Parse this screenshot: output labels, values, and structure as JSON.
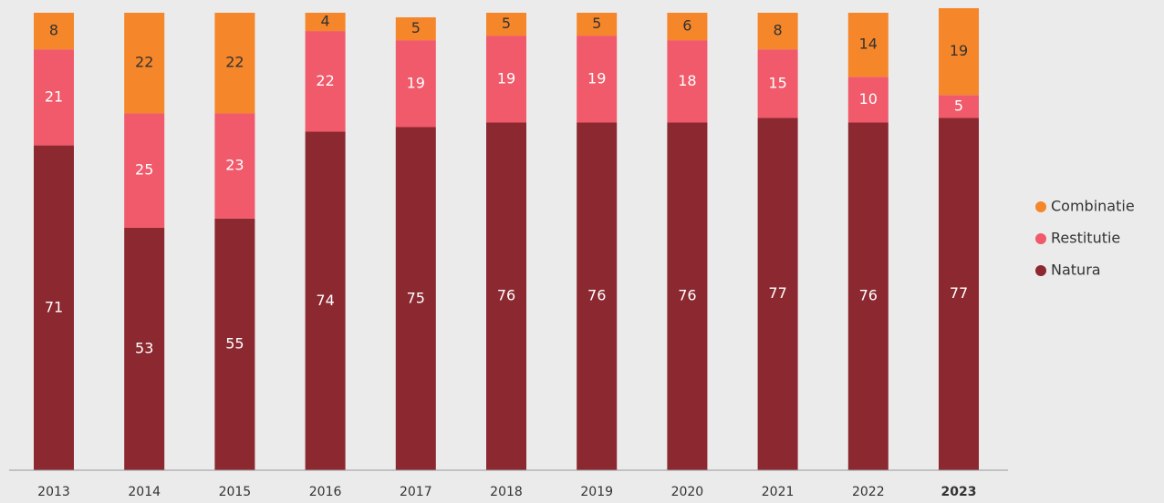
{
  "chart_data": {
    "type": "stacked_bar",
    "categories": [
      "2013",
      "2014",
      "2015",
      "2016",
      "2017",
      "2018",
      "2019",
      "2020",
      "2021",
      "2022",
      "2023"
    ],
    "series": [
      {
        "name": "Natura",
        "color": "#8b2830",
        "label_color": "#ffffff",
        "values": [
          71,
          53,
          55,
          74,
          75,
          76,
          76,
          76,
          77,
          76,
          77
        ]
      },
      {
        "name": "Restitutie",
        "color": "#f05a6a",
        "label_color": "#ffffff",
        "values": [
          21,
          25,
          23,
          22,
          19,
          19,
          19,
          18,
          15,
          10,
          5
        ]
      },
      {
        "name": "Combinatie",
        "color": "#f5862a",
        "label_color": "#333333",
        "values": [
          8,
          22,
          22,
          4,
          5,
          5,
          5,
          6,
          8,
          14,
          19
        ]
      }
    ],
    "ylim": [
      0,
      100
    ],
    "legend": "right",
    "highlighted_category": 10,
    "highlight_color": "#f05a6a"
  }
}
